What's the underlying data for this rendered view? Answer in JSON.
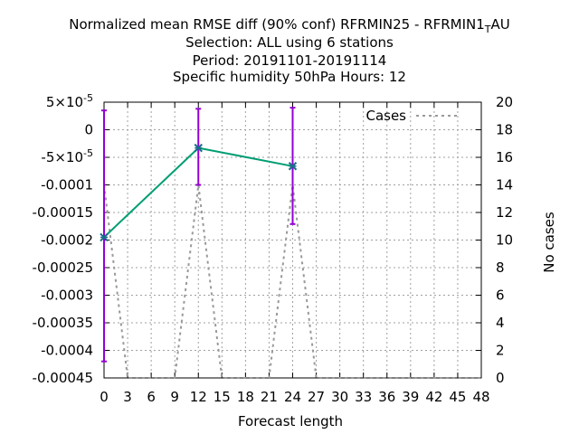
{
  "chart_data": {
    "type": "line",
    "title_lines": [
      "Normalized mean RMSE diff (90% conf) RFRMIN25 - RFRMIN1",
      "Selection: ALL using     6 stations",
      "Period: 20191101-20191114",
      "Specific humidity 50hPa   Hours:  12"
    ],
    "title_suffix": {
      "sub": "T",
      "rest": "AU"
    },
    "xlabel": "Forecast length",
    "ylabel_right": "No cases",
    "x_ticks": [
      0,
      3,
      6,
      9,
      12,
      15,
      18,
      21,
      24,
      27,
      30,
      33,
      36,
      39,
      42,
      45,
      48
    ],
    "y_ticks_left": [
      {
        "v": 5e-05,
        "label": "5x10-5"
      },
      {
        "v": 0,
        "label": "0"
      },
      {
        "v": -5e-05,
        "label": "-5x10-5"
      },
      {
        "v": -0.0001,
        "label": "-0.0001"
      },
      {
        "v": -0.00015,
        "label": "-0.00015"
      },
      {
        "v": -0.0002,
        "label": "-0.0002"
      },
      {
        "v": -0.00025,
        "label": "-0.00025"
      },
      {
        "v": -0.0003,
        "label": "-0.0003"
      },
      {
        "v": -0.00035,
        "label": "-0.00035"
      },
      {
        "v": -0.0004,
        "label": "-0.0004"
      },
      {
        "v": -0.00045,
        "label": "-0.00045"
      }
    ],
    "y_ticks_right": [
      0,
      2,
      4,
      6,
      8,
      10,
      12,
      14,
      16,
      18,
      20
    ],
    "xlim": [
      0,
      48
    ],
    "ylim_left": [
      -0.00045,
      5e-05
    ],
    "ylim_right": [
      0,
      20
    ],
    "grid": true,
    "legend": {
      "label": "Cases",
      "position": "top-right"
    },
    "series": [
      {
        "axis": "left",
        "color": "#009e73",
        "error_color": "#9400d3",
        "points": [
          {
            "x": 0,
            "y": -0.000195,
            "lo": -0.00042,
            "hi": 3.5e-05
          },
          {
            "x": 12,
            "y": -3.3e-05,
            "lo": -0.0001,
            "hi": 3.8e-05
          },
          {
            "x": 24,
            "y": -6.6e-05,
            "lo": -0.000171,
            "hi": 4e-05
          }
        ]
      },
      {
        "name": "Cases",
        "axis": "right",
        "color": "#999999",
        "dashed": true,
        "x": [
          0,
          1,
          2,
          3,
          4,
          5,
          6,
          7,
          8,
          9,
          10,
          11,
          12,
          13,
          14,
          15,
          16,
          17,
          18,
          19,
          20,
          21,
          22,
          23,
          24,
          25,
          26,
          27,
          28,
          29,
          30,
          31,
          32,
          33,
          34,
          35,
          36,
          37,
          38,
          39,
          40,
          41,
          42,
          43,
          44,
          45,
          46,
          47,
          48
        ],
        "y": [
          14,
          9.333,
          4.667,
          0,
          0,
          0,
          0,
          0,
          0,
          0,
          4.667,
          9.333,
          14,
          9.333,
          4.667,
          0,
          0,
          0,
          0,
          0,
          0,
          0,
          4.667,
          9.333,
          14,
          9.333,
          4.667,
          0,
          0,
          0,
          0,
          0,
          0,
          0,
          0,
          0,
          0,
          0,
          0,
          0,
          0,
          0,
          0,
          0,
          0,
          0,
          0,
          0,
          0
        ]
      }
    ]
  }
}
